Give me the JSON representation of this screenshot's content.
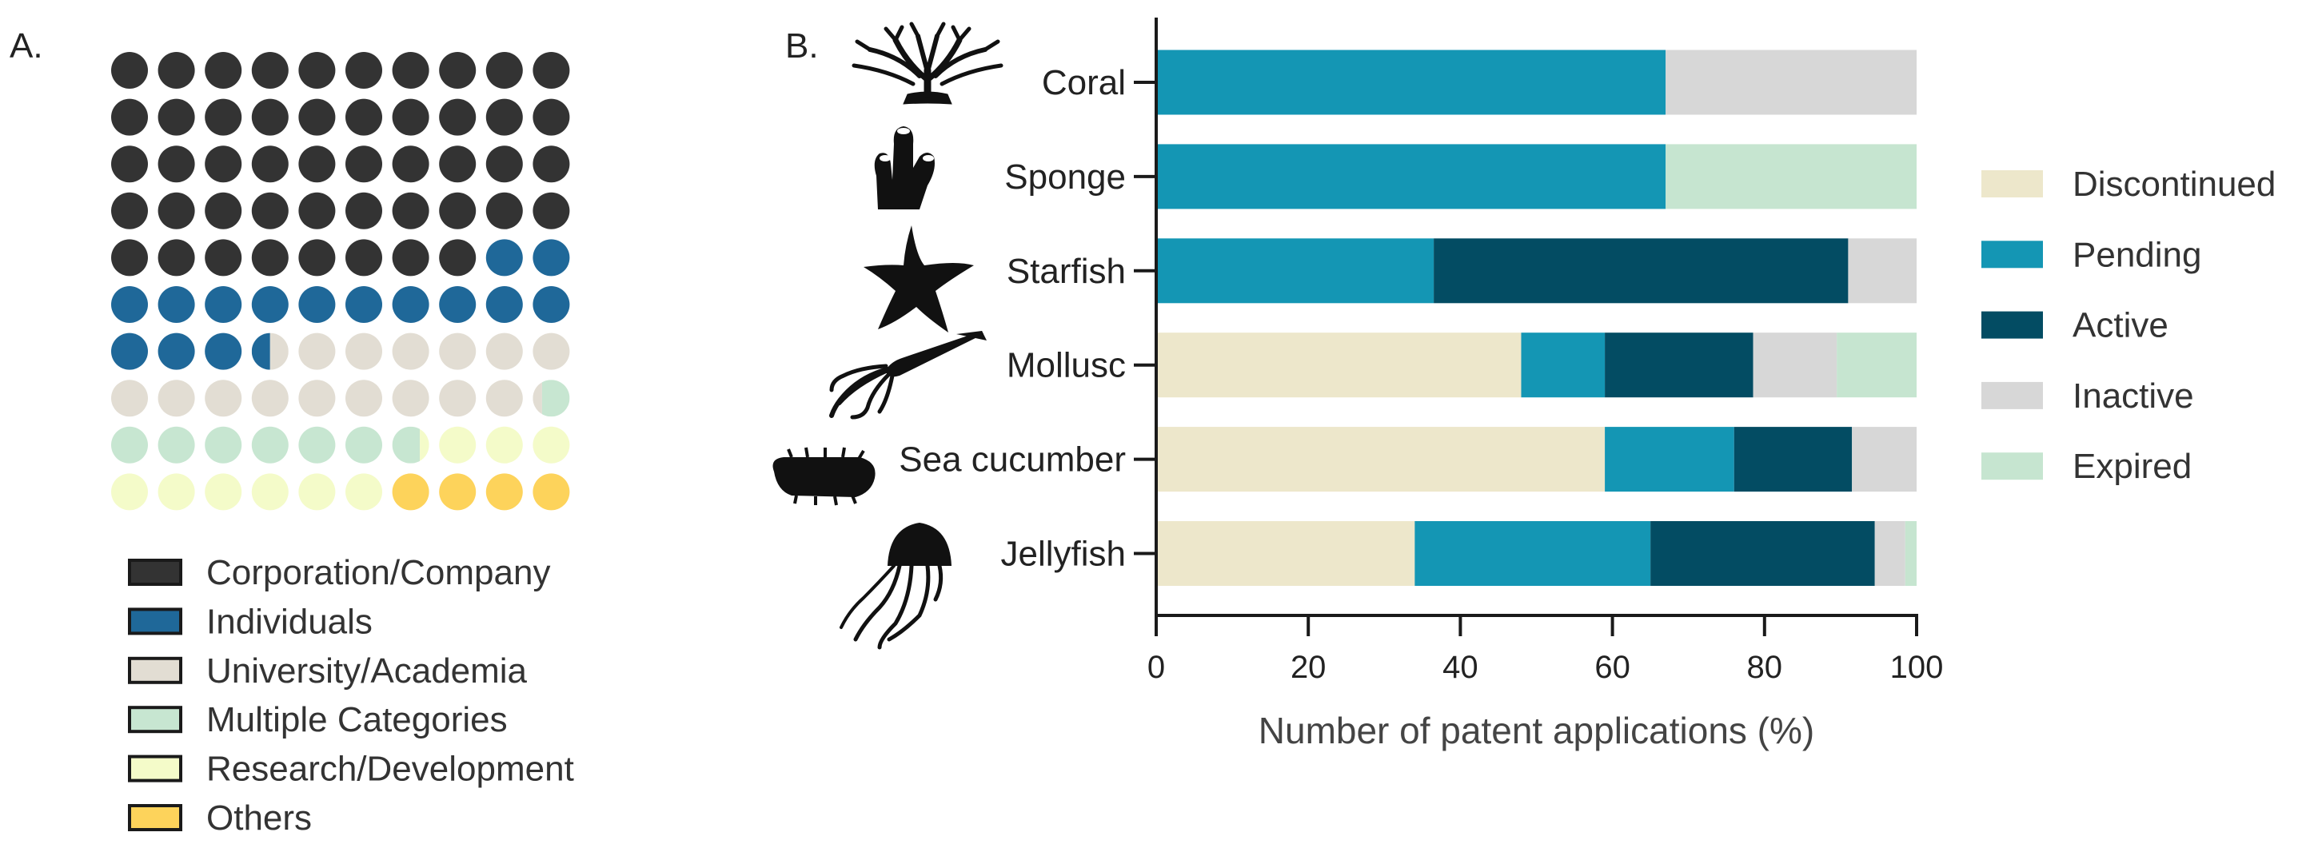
{
  "panels": {
    "a_label": "A.",
    "b_label": "B."
  },
  "colors": {
    "corporation": "#333333",
    "individuals": "#1f6899",
    "university": "#e2ddd3",
    "multiple": "#c7e6d1",
    "research": "#f4fbc9",
    "others": "#fdd35b",
    "discontinued": "#ede7cb",
    "pending": "#1496b4",
    "active": "#034c63",
    "inactive": "#d7d7d7",
    "expired": "#c6e5d0"
  },
  "chart_data": [
    {
      "type": "waffle",
      "grid": [
        10,
        10
      ],
      "legend_position": "bottom",
      "series": [
        {
          "name": "Corporation/Company",
          "value": 48,
          "color_key": "corporation"
        },
        {
          "name": "Individuals",
          "value": 15.5,
          "color_key": "individuals"
        },
        {
          "name": "University/Academia",
          "value": 15.75,
          "color_key": "university"
        },
        {
          "name": "Multiple Categories",
          "value": 7.5,
          "color_key": "multiple"
        },
        {
          "name": "Research/Development",
          "value": 9.25,
          "color_key": "research"
        },
        {
          "name": "Others",
          "value": 4,
          "color_key": "others"
        }
      ]
    },
    {
      "type": "bar",
      "orientation": "horizontal",
      "stacked": true,
      "categories": [
        "Coral",
        "Sponge",
        "Starfish",
        "Mollusc",
        "Sea cucumber",
        "Jellyfish"
      ],
      "icons": [
        "coral-icon",
        "sponge-icon",
        "starfish-icon",
        "mollusc-icon",
        "sea-cucumber-icon",
        "jellyfish-icon"
      ],
      "series": [
        {
          "name": "Discontinued",
          "color_key": "discontinued",
          "values": [
            0,
            0,
            0,
            48,
            59,
            34
          ]
        },
        {
          "name": "Pending",
          "color_key": "pending",
          "values": [
            67,
            67,
            36.5,
            11,
            17,
            31
          ]
        },
        {
          "name": "Active",
          "color_key": "active",
          "values": [
            0,
            0,
            54.5,
            19.5,
            15.5,
            29.5
          ]
        },
        {
          "name": "Inactive",
          "color_key": "inactive",
          "values": [
            33,
            0,
            9,
            11,
            8.5,
            4
          ]
        },
        {
          "name": "Expired",
          "color_key": "expired",
          "values": [
            0,
            33,
            0,
            10.5,
            0,
            1.5
          ]
        }
      ],
      "xlim": [
        0,
        100
      ],
      "xticks": [
        0,
        20,
        40,
        60,
        80,
        100
      ],
      "xlabel": "Number of patent applications (%)",
      "legend_position": "right",
      "grid": false
    }
  ]
}
